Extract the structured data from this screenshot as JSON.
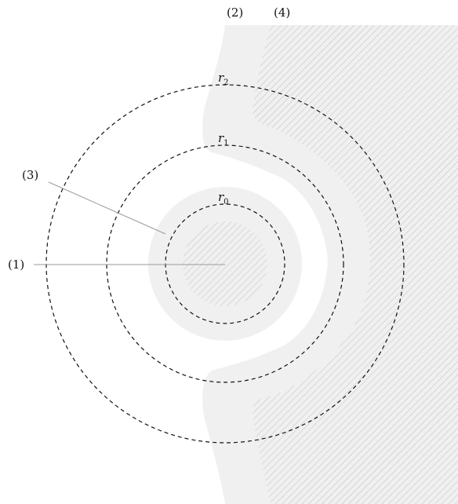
{
  "labels": {
    "region_1": "(1)",
    "region_2": "(2)",
    "region_3": "(3)",
    "region_4": "(4)"
  },
  "radii": [
    {
      "symbol": "r",
      "subscript": "0"
    },
    {
      "symbol": "r",
      "subscript": "1"
    },
    {
      "symbol": "r",
      "subscript": "2"
    }
  ],
  "colors": {
    "light_region": "#f0f0f0",
    "hatch": "#bdbdbd",
    "circle_stroke": "#111111",
    "leader_line": "#9a9a9a"
  }
}
